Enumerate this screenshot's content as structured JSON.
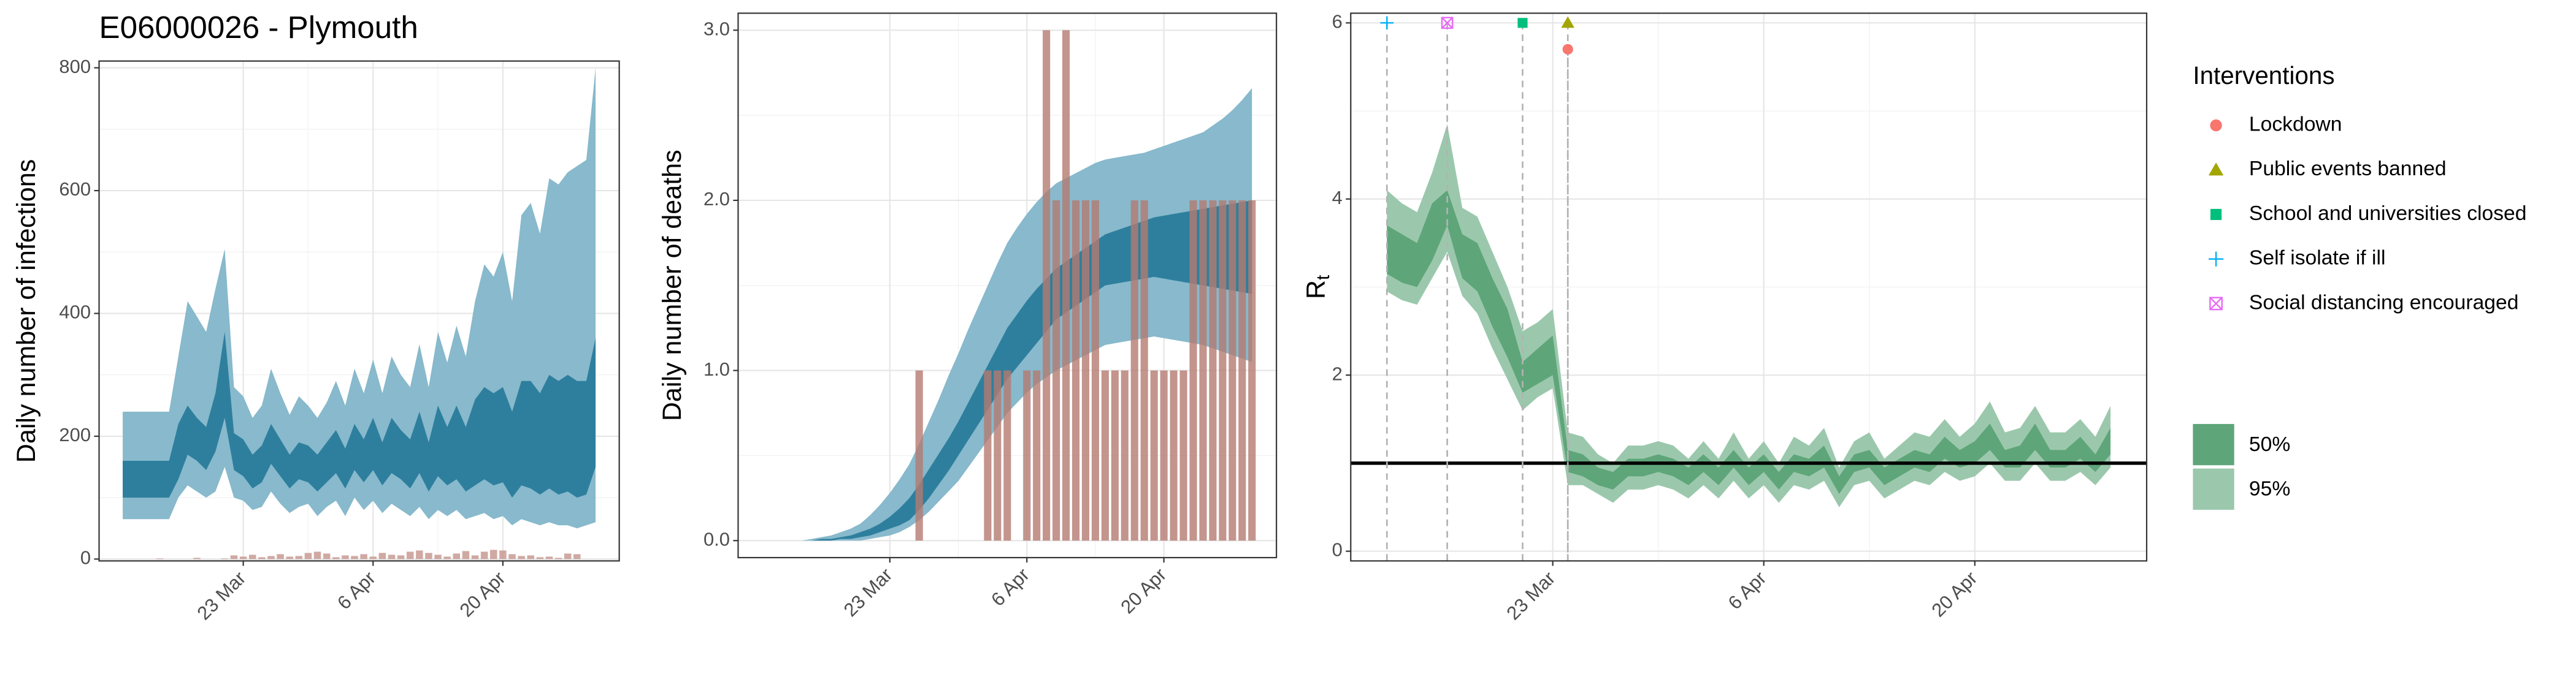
{
  "chart_data": [
    {
      "type": "ribbon",
      "title": "E06000026 - Plymouth",
      "ylabel": "Daily number of infections",
      "x": [
        "10 Mar",
        "11 Mar",
        "12 Mar",
        "13 Mar",
        "14 Mar",
        "15 Mar",
        "16 Mar",
        "17 Mar",
        "18 Mar",
        "19 Mar",
        "20 Mar",
        "21 Mar",
        "22 Mar",
        "23 Mar",
        "24 Mar",
        "25 Mar",
        "26 Mar",
        "27 Mar",
        "28 Mar",
        "29 Mar",
        "30 Mar",
        "31 Mar",
        "1 Apr",
        "2 Apr",
        "3 Apr",
        "4 Apr",
        "5 Apr",
        "6 Apr",
        "7 Apr",
        "8 Apr",
        "9 Apr",
        "10 Apr",
        "11 Apr",
        "12 Apr",
        "13 Apr",
        "14 Apr",
        "15 Apr",
        "16 Apr",
        "17 Apr",
        "18 Apr",
        "19 Apr",
        "20 Apr",
        "21 Apr",
        "22 Apr",
        "23 Apr",
        "24 Apr",
        "25 Apr",
        "26 Apr",
        "27 Apr",
        "28 Apr",
        "29 Apr",
        "30 Apr"
      ],
      "xticks": [
        "23 Mar",
        "6 Apr",
        "20 Apr"
      ],
      "ylim": [
        -3,
        811
      ],
      "yticks": [
        0,
        200,
        400,
        600,
        800
      ],
      "grid": true,
      "series": [
        {
          "type": "ribbon",
          "color": "#2e7f9d",
          "lower": [
            100,
            100,
            100,
            100,
            100,
            100,
            130,
            170,
            160,
            145,
            175,
            230,
            145,
            135,
            115,
            125,
            155,
            135,
            115,
            130,
            125,
            110,
            125,
            140,
            115,
            145,
            125,
            145,
            120,
            140,
            130,
            115,
            140,
            110,
            135,
            120,
            130,
            110,
            120,
            130,
            120,
            125,
            100,
            120,
            115,
            105,
            115,
            105,
            110,
            100,
            105,
            150
          ],
          "upper": [
            160,
            160,
            160,
            160,
            160,
            160,
            220,
            250,
            230,
            215,
            270,
            370,
            205,
            195,
            170,
            185,
            220,
            195,
            170,
            190,
            185,
            170,
            190,
            210,
            180,
            220,
            195,
            230,
            190,
            230,
            210,
            195,
            240,
            190,
            250,
            215,
            250,
            215,
            260,
            280,
            270,
            280,
            240,
            290,
            290,
            270,
            300,
            290,
            300,
            290,
            290,
            360
          ]
        },
        {
          "type": "ribbon",
          "color": "#88b9cc",
          "lower": [
            65,
            65,
            65,
            65,
            65,
            65,
            100,
            120,
            110,
            100,
            110,
            150,
            100,
            95,
            80,
            85,
            110,
            90,
            75,
            85,
            90,
            70,
            85,
            95,
            70,
            100,
            80,
            95,
            75,
            90,
            80,
            70,
            85,
            65,
            80,
            70,
            80,
            65,
            70,
            75,
            65,
            70,
            55,
            65,
            60,
            55,
            60,
            55,
            55,
            50,
            55,
            60
          ],
          "upper": [
            240,
            240,
            240,
            240,
            240,
            240,
            330,
            420,
            395,
            370,
            440,
            505,
            280,
            265,
            230,
            250,
            310,
            270,
            235,
            265,
            250,
            230,
            255,
            290,
            250,
            310,
            270,
            325,
            270,
            330,
            300,
            280,
            350,
            280,
            370,
            320,
            380,
            330,
            420,
            480,
            460,
            500,
            420,
            560,
            580,
            530,
            620,
            610,
            630,
            640,
            650,
            800
          ]
        },
        {
          "type": "bar",
          "color": "#c4948c",
          "values": [
            0,
            0,
            0,
            0,
            1,
            0,
            0,
            0,
            2,
            0,
            0,
            1,
            6,
            4,
            7,
            3,
            5,
            8,
            4,
            5,
            10,
            12,
            9,
            3,
            6,
            5,
            8,
            4,
            10,
            7,
            6,
            12,
            14,
            10,
            7,
            4,
            9,
            13,
            6,
            12,
            15,
            14,
            8,
            5,
            6,
            3,
            4,
            2,
            9,
            8,
            0,
            0
          ]
        }
      ]
    },
    {
      "type": "ribbon",
      "ylabel": "Daily number of deaths",
      "x": [
        "10 Mar",
        "11 Mar",
        "12 Mar",
        "13 Mar",
        "14 Mar",
        "15 Mar",
        "16 Mar",
        "17 Mar",
        "18 Mar",
        "19 Mar",
        "20 Mar",
        "21 Mar",
        "22 Mar",
        "23 Mar",
        "24 Mar",
        "25 Mar",
        "26 Mar",
        "27 Mar",
        "28 Mar",
        "29 Mar",
        "30 Mar",
        "31 Mar",
        "1 Apr",
        "2 Apr",
        "3 Apr",
        "4 Apr",
        "5 Apr",
        "6 Apr",
        "7 Apr",
        "8 Apr",
        "9 Apr",
        "10 Apr",
        "11 Apr",
        "12 Apr",
        "13 Apr",
        "14 Apr",
        "15 Apr",
        "16 Apr",
        "17 Apr",
        "18 Apr",
        "19 Apr",
        "20 Apr",
        "21 Apr",
        "22 Apr",
        "23 Apr",
        "24 Apr",
        "25 Apr",
        "26 Apr",
        "27 Apr",
        "28 Apr",
        "29 Apr"
      ],
      "xticks": [
        "23 Mar",
        "6 Apr",
        "20 Apr"
      ],
      "ylim": [
        -0.1,
        3.1
      ],
      "yticks": [
        {
          "value": 0,
          "label": "0.0"
        },
        {
          "value": 1,
          "label": "1.0"
        },
        {
          "value": 2,
          "label": "2.0"
        },
        {
          "value": 3,
          "label": "3.0"
        }
      ],
      "grid": true,
      "series": [
        {
          "type": "ribbon",
          "color": "#2e7f9d",
          "lower": [
            null,
            null,
            null,
            null,
            0,
            0,
            0,
            0,
            0.01,
            0.01,
            0.02,
            0.03,
            0.05,
            0.07,
            0.09,
            0.12,
            0.18,
            0.25,
            0.33,
            0.41,
            0.5,
            0.59,
            0.68,
            0.77,
            0.86,
            0.95,
            1.02,
            1.09,
            1.16,
            1.23,
            1.3,
            1.34,
            1.38,
            1.42,
            1.46,
            1.5,
            1.51,
            1.52,
            1.53,
            1.54,
            1.55,
            1.54,
            1.53,
            1.52,
            1.51,
            1.5,
            1.49,
            1.48,
            1.47,
            1.46,
            1.45
          ],
          "upper": [
            null,
            null,
            null,
            null,
            0,
            0,
            0.01,
            0.01,
            0.02,
            0.03,
            0.05,
            0.07,
            0.1,
            0.14,
            0.19,
            0.25,
            0.33,
            0.42,
            0.51,
            0.6,
            0.7,
            0.81,
            0.92,
            1.03,
            1.14,
            1.25,
            1.33,
            1.41,
            1.48,
            1.54,
            1.6,
            1.64,
            1.68,
            1.72,
            1.76,
            1.8,
            1.82,
            1.84,
            1.86,
            1.88,
            1.9,
            1.91,
            1.92,
            1.93,
            1.94,
            1.95,
            1.96,
            1.97,
            1.98,
            1.99,
            2.0
          ]
        },
        {
          "type": "ribbon",
          "color": "#88b9cc",
          "lower": [
            null,
            null,
            null,
            null,
            0,
            0,
            0,
            0,
            0,
            0,
            0,
            0.01,
            0.02,
            0.03,
            0.05,
            0.08,
            0.12,
            0.17,
            0.23,
            0.29,
            0.35,
            0.43,
            0.51,
            0.59,
            0.67,
            0.75,
            0.81,
            0.87,
            0.92,
            0.96,
            1.0,
            1.03,
            1.06,
            1.09,
            1.12,
            1.15,
            1.16,
            1.17,
            1.18,
            1.19,
            1.2,
            1.19,
            1.18,
            1.17,
            1.16,
            1.15,
            1.13,
            1.11,
            1.09,
            1.07,
            1.05
          ],
          "upper": [
            null,
            null,
            null,
            null,
            0,
            0.01,
            0.02,
            0.03,
            0.05,
            0.07,
            0.1,
            0.15,
            0.21,
            0.28,
            0.36,
            0.45,
            0.57,
            0.7,
            0.83,
            0.97,
            1.1,
            1.24,
            1.37,
            1.5,
            1.63,
            1.75,
            1.84,
            1.92,
            1.99,
            2.05,
            2.1,
            2.13,
            2.16,
            2.19,
            2.22,
            2.24,
            2.25,
            2.26,
            2.27,
            2.28,
            2.3,
            2.32,
            2.34,
            2.36,
            2.38,
            2.4,
            2.44,
            2.48,
            2.53,
            2.59,
            2.66
          ]
        },
        {
          "type": "bar",
          "color": "#b47a70",
          "values": [
            0,
            0,
            0,
            0,
            0,
            0,
            0,
            0,
            0,
            0,
            0,
            0,
            0,
            0,
            0,
            0,
            1,
            0,
            0,
            0,
            0,
            0,
            0,
            1,
            1,
            1,
            0,
            1,
            1,
            3,
            2,
            3,
            2,
            2,
            2,
            1,
            1,
            1,
            2,
            2,
            1,
            1,
            1,
            1,
            2,
            2,
            2,
            2,
            2,
            2,
            2
          ]
        }
      ]
    },
    {
      "type": "ribbon",
      "ylabel": "R",
      "ylabel_subscript": "t",
      "x": [
        "12 Mar",
        "13 Mar",
        "14 Mar",
        "15 Mar",
        "16 Mar",
        "17 Mar",
        "18 Mar",
        "19 Mar",
        "20 Mar",
        "21 Mar",
        "22 Mar",
        "23 Mar",
        "24 Mar",
        "25 Mar",
        "26 Mar",
        "27 Mar",
        "28 Mar",
        "29 Mar",
        "30 Mar",
        "31 Mar",
        "1 Apr",
        "2 Apr",
        "3 Apr",
        "4 Apr",
        "5 Apr",
        "6 Apr",
        "7 Apr",
        "8 Apr",
        "9 Apr",
        "10 Apr",
        "11 Apr",
        "12 Apr",
        "13 Apr",
        "14 Apr",
        "15 Apr",
        "16 Apr",
        "17 Apr",
        "18 Apr",
        "19 Apr",
        "20 Apr",
        "21 Apr",
        "22 Apr",
        "23 Apr",
        "24 Apr",
        "25 Apr",
        "26 Apr",
        "27 Apr",
        "28 Apr",
        "29 Apr"
      ],
      "xticks": [
        "23 Mar",
        "6 Apr",
        "20 Apr"
      ],
      "ylim": [
        -0.11,
        6.11
      ],
      "yticks": [
        0,
        2,
        4,
        6
      ],
      "grid": true,
      "hline": 1,
      "series": [
        {
          "type": "ribbon",
          "name": "50%",
          "color": "#5fa57a",
          "lower": [
            3.15,
            3.05,
            3.0,
            3.3,
            3.7,
            3.1,
            2.95,
            2.55,
            2.2,
            1.8,
            1.9,
            2.0,
            0.9,
            0.85,
            0.75,
            0.7,
            0.85,
            0.85,
            0.9,
            0.85,
            0.75,
            0.9,
            0.75,
            0.95,
            0.75,
            0.9,
            0.7,
            0.9,
            0.85,
            0.95,
            0.65,
            0.9,
            0.95,
            0.75,
            0.85,
            0.95,
            0.9,
            1.05,
            0.95,
            1.0,
            1.15,
            0.95,
            0.95,
            1.15,
            0.95,
            0.95,
            1.05,
            0.9,
            1.1
          ],
          "upper": [
            3.7,
            3.6,
            3.5,
            3.95,
            4.1,
            3.6,
            3.5,
            3.1,
            2.75,
            2.15,
            2.3,
            2.45,
            1.15,
            1.1,
            0.95,
            0.9,
            1.05,
            1.05,
            1.1,
            1.05,
            0.95,
            1.1,
            0.95,
            1.15,
            0.95,
            1.1,
            0.9,
            1.1,
            1.05,
            1.2,
            0.85,
            1.1,
            1.15,
            0.95,
            1.05,
            1.15,
            1.1,
            1.3,
            1.15,
            1.25,
            1.45,
            1.15,
            1.2,
            1.45,
            1.15,
            1.15,
            1.3,
            1.1,
            1.4
          ]
        },
        {
          "type": "ribbon",
          "name": "95%",
          "color": "#9bc8ac",
          "lower": [
            2.95,
            2.85,
            2.8,
            3.1,
            3.4,
            2.9,
            2.7,
            2.3,
            1.95,
            1.6,
            1.75,
            1.85,
            0.75,
            0.75,
            0.65,
            0.55,
            0.7,
            0.7,
            0.75,
            0.7,
            0.6,
            0.75,
            0.6,
            0.8,
            0.6,
            0.75,
            0.55,
            0.75,
            0.7,
            0.8,
            0.5,
            0.75,
            0.8,
            0.6,
            0.7,
            0.8,
            0.75,
            0.9,
            0.8,
            0.85,
            1.0,
            0.8,
            0.8,
            1.0,
            0.8,
            0.8,
            0.9,
            0.75,
            0.95
          ],
          "upper": [
            4.1,
            3.95,
            3.85,
            4.3,
            4.85,
            3.9,
            3.8,
            3.4,
            3.0,
            2.5,
            2.6,
            2.75,
            1.35,
            1.3,
            1.1,
            1.0,
            1.2,
            1.2,
            1.25,
            1.2,
            1.05,
            1.25,
            1.05,
            1.35,
            1.05,
            1.25,
            1.0,
            1.3,
            1.2,
            1.4,
            0.95,
            1.25,
            1.35,
            1.05,
            1.2,
            1.35,
            1.3,
            1.5,
            1.3,
            1.45,
            1.7,
            1.35,
            1.4,
            1.65,
            1.35,
            1.35,
            1.5,
            1.3,
            1.65
          ]
        }
      ],
      "interventions": {
        "title": "Interventions",
        "items": [
          {
            "name": "Lockdown",
            "color": "#f8766d",
            "shape": "circle",
            "x": "24 Mar",
            "y": 5.7
          },
          {
            "name": "Public events banned",
            "color": "#a3a500",
            "shape": "triangle",
            "x": "24 Mar",
            "y": 6
          },
          {
            "name": "School and universities closed",
            "color": "#00bf7d",
            "shape": "square",
            "x": "21 Mar",
            "y": 6
          },
          {
            "name": "Self isolate if ill",
            "color": "#00b0f6",
            "shape": "plus",
            "x": "12 Mar",
            "y": 6
          },
          {
            "name": "Social distancing encouraged",
            "color": "#e76bf3",
            "shape": "boxed-x",
            "x": "16 Mar",
            "y": 6
          }
        ]
      }
    }
  ]
}
